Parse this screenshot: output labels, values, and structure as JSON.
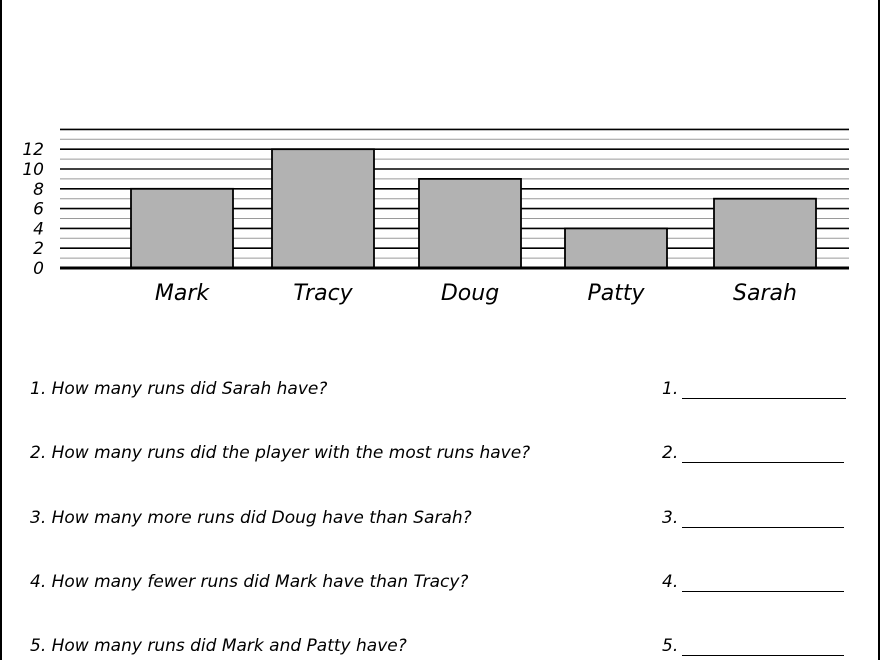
{
  "chart_data": {
    "type": "bar",
    "categories": [
      "Mark",
      "Tracy",
      "Doug",
      "Patty",
      "Sarah"
    ],
    "values": [
      8,
      12,
      9,
      4,
      7
    ],
    "ylim": [
      0,
      13
    ],
    "yticks": [
      0,
      2,
      4,
      6,
      8,
      10,
      12
    ],
    "grid": true,
    "title": "",
    "xlabel": "",
    "ylabel": "",
    "bar_color": "#b2b2b2"
  },
  "questions": [
    {
      "text": "1. How many runs did Sarah have?",
      "answer_label": "1."
    },
    {
      "text": "2. How many runs did the player with the most runs have?",
      "answer_label": "2."
    },
    {
      "text": "3. How many more runs did Doug have than Sarah?",
      "answer_label": "3."
    },
    {
      "text": "4. How many fewer runs did Mark have than Tracy?",
      "answer_label": "4."
    },
    {
      "text": "5. How many runs did Mark and Patty have?",
      "answer_label": "5."
    }
  ]
}
